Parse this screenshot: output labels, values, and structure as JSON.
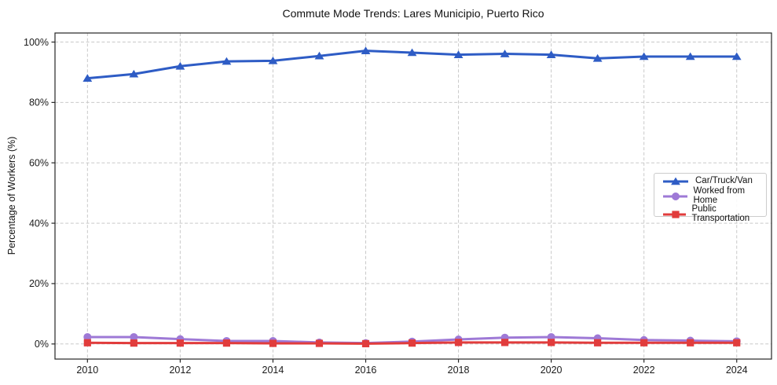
{
  "chart_data": {
    "type": "line",
    "title": "Commute Mode Trends: Lares Municipio, Puerto Rico",
    "xlabel": "",
    "ylabel": "Percentage of Workers (%)",
    "x": [
      2010,
      2011,
      2012,
      2013,
      2014,
      2015,
      2016,
      2017,
      2018,
      2019,
      2020,
      2021,
      2022,
      2023,
      2024
    ],
    "xticks": [
      2010,
      2012,
      2014,
      2016,
      2018,
      2020,
      2022,
      2024
    ],
    "yticks": [
      0,
      20,
      40,
      60,
      80,
      100
    ],
    "ytick_suffix": "%",
    "xlim": [
      2009.3,
      2024.75
    ],
    "ylim": [
      -5,
      103
    ],
    "grid": {
      "show": true,
      "style": "dashed",
      "color": "#c9c9c9"
    },
    "legend": {
      "position": "center-right",
      "border_color": "#cccccc"
    },
    "series": [
      {
        "name": "Car/Truck/Van",
        "color": "#2e5cc5",
        "marker": "triangle",
        "values": [
          88.0,
          89.4,
          92.0,
          93.6,
          93.8,
          95.4,
          97.1,
          96.5,
          95.8,
          96.1,
          95.8,
          94.6,
          95.2,
          95.2,
          95.2
        ]
      },
      {
        "name": "Worked from Home",
        "color": "#9e79d6",
        "marker": "circle",
        "values": [
          2.3,
          2.3,
          1.6,
          1.0,
          1.0,
          0.5,
          0.3,
          0.8,
          1.5,
          2.1,
          2.3,
          1.9,
          1.3,
          1.1,
          0.9
        ]
      },
      {
        "name": "Public Transportation",
        "color": "#e13c3c",
        "marker": "square",
        "values": [
          0.4,
          0.3,
          0.3,
          0.3,
          0.2,
          0.2,
          0.1,
          0.3,
          0.5,
          0.5,
          0.5,
          0.4,
          0.4,
          0.4,
          0.4
        ]
      }
    ]
  }
}
